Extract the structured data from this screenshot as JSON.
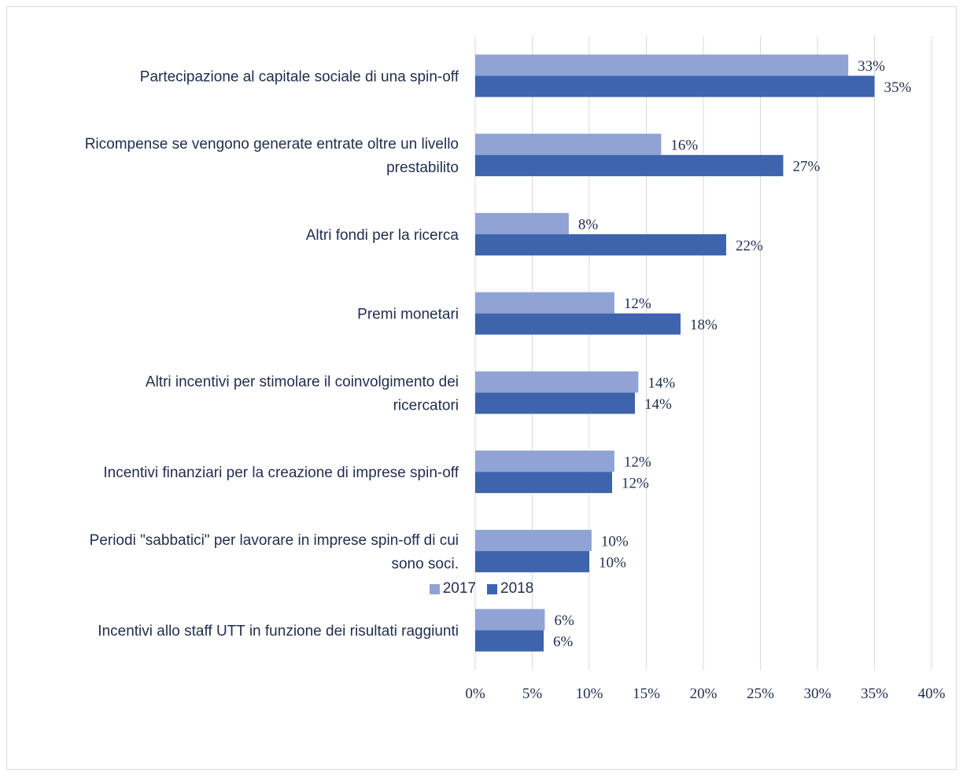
{
  "chart_data": {
    "type": "bar",
    "orientation": "horizontal",
    "categories": [
      [
        "Partecipazione al capitale sociale di una spin-off"
      ],
      [
        "Ricompense se vengono generate entrate oltre un livello",
        "prestabilito"
      ],
      [
        "Altri fondi per la ricerca"
      ],
      [
        "Premi monetari"
      ],
      [
        "Altri incentivi per stimolare il coinvolgimento dei",
        "ricercatori"
      ],
      [
        "Incentivi finanziari per la creazione di imprese spin-off"
      ],
      [
        "Periodi \"sabbatici\" per lavorare in imprese spin-off di cui",
        "sono soci."
      ],
      [
        "Incentivi allo staff UTT in funzione dei risultati raggiunti"
      ]
    ],
    "series": [
      {
        "name": "2017",
        "color": "#8fa3d4",
        "values": [
          32.7,
          16.3,
          8.2,
          12.2,
          14.3,
          12.2,
          10.2,
          6.1
        ],
        "labels": [
          "33%",
          "16%",
          "8%",
          "12%",
          "14%",
          "12%",
          "10%",
          "6%"
        ]
      },
      {
        "name": "2018",
        "color": "#3d64ad",
        "values": [
          35.0,
          27.0,
          22.0,
          18.0,
          14.0,
          12.0,
          10.0,
          6.0
        ],
        "labels": [
          "35%",
          "27%",
          "22%",
          "18%",
          "14%",
          "12%",
          "10%",
          "6%"
        ]
      }
    ],
    "xlim": [
      0,
      40
    ],
    "xticks": [
      0,
      5,
      10,
      15,
      20,
      25,
      30,
      35,
      40
    ],
    "xtick_labels": [
      "0%",
      "5%",
      "10%",
      "15%",
      "20%",
      "25%",
      "30%",
      "35%",
      "40%"
    ],
    "grid": true,
    "legend_position": "bottom"
  }
}
